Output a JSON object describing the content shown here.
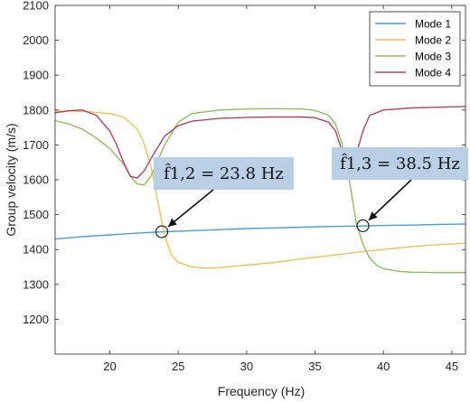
{
  "chart_data": {
    "type": "line",
    "title": "",
    "xlabel": "Frequency (Hz)",
    "ylabel": "Group velocity (m/s)",
    "xlim": [
      16,
      46
    ],
    "ylim": [
      1100,
      2100
    ],
    "xticks": [
      20,
      25,
      30,
      35,
      40,
      45
    ],
    "yticks": [
      1200,
      1300,
      1400,
      1500,
      1600,
      1700,
      1800,
      1900,
      2000,
      2100
    ],
    "grid": false,
    "legend_position": "top-right",
    "series": [
      {
        "name": "Mode 1",
        "color": "#4a9fd4",
        "x": [
          16,
          18,
          20,
          22,
          24,
          26,
          28,
          30,
          32,
          34,
          36,
          38,
          40,
          42,
          44,
          46
        ],
        "y": [
          1430,
          1437,
          1442,
          1447,
          1451,
          1454,
          1457,
          1460,
          1462,
          1464,
          1466,
          1467,
          1469,
          1470,
          1472,
          1473
        ]
      },
      {
        "name": "Mode 2",
        "color": "#f0c24f",
        "x": [
          16,
          18,
          20,
          21,
          22,
          22.5,
          23,
          23.5,
          24,
          24.5,
          25,
          26,
          27,
          28,
          29,
          30,
          32,
          34,
          36,
          38,
          40,
          42,
          44,
          46
        ],
        "y": [
          1797,
          1796,
          1790,
          1780,
          1745,
          1705,
          1640,
          1540,
          1440,
          1385,
          1363,
          1350,
          1347,
          1348,
          1352,
          1355,
          1363,
          1373,
          1382,
          1392,
          1400,
          1408,
          1414,
          1418
        ]
      },
      {
        "name": "Mode 3",
        "color": "#8fbf5a",
        "x": [
          16,
          17,
          18,
          19,
          20,
          21,
          21.5,
          22,
          22.5,
          23,
          24,
          25,
          26,
          28,
          30,
          32,
          34,
          35,
          36,
          36.5,
          37,
          37.5,
          38,
          38.5,
          39,
          39.5,
          40,
          41,
          42,
          44,
          46
        ],
        "y": [
          1770,
          1760,
          1745,
          1720,
          1690,
          1645,
          1610,
          1588,
          1585,
          1610,
          1700,
          1765,
          1790,
          1800,
          1803,
          1804,
          1803,
          1799,
          1785,
          1760,
          1700,
          1600,
          1480,
          1415,
          1375,
          1355,
          1345,
          1338,
          1335,
          1334,
          1334
        ]
      },
      {
        "name": "Mode 4",
        "color": "#b2426e",
        "x": [
          16,
          17,
          18,
          19,
          20,
          20.5,
          21,
          21.5,
          22,
          22.5,
          23,
          24,
          25,
          26,
          28,
          30,
          32,
          34,
          35,
          36,
          36.5,
          37,
          37.5,
          38,
          38.5,
          39,
          40,
          42,
          44,
          46
        ],
        "y": [
          1792,
          1798,
          1800,
          1785,
          1740,
          1700,
          1650,
          1610,
          1605,
          1625,
          1660,
          1725,
          1755,
          1768,
          1776,
          1779,
          1780,
          1780,
          1778,
          1765,
          1740,
          1680,
          1640,
          1670,
          1740,
          1785,
          1800,
          1806,
          1808,
          1810
        ]
      }
    ],
    "annotations": [
      {
        "text": "f̂1,2 = 23.8 Hz",
        "x": 23.8,
        "y": 1451
      },
      {
        "text": "f̂1,3 = 38.5 Hz",
        "x": 38.5,
        "y": 1468
      }
    ]
  }
}
